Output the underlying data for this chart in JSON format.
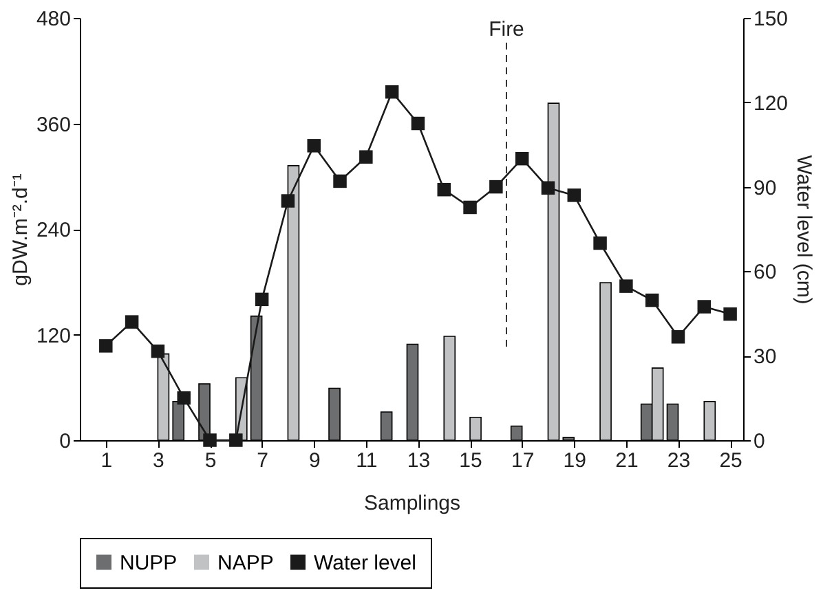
{
  "chart_data": {
    "type": "bar",
    "xlabel": "Samplings",
    "ylabel": "gDW.m⁻².d⁻¹",
    "y2label": "Water level (cm)",
    "x": [
      1,
      2,
      3,
      4,
      5,
      6,
      7,
      8,
      9,
      10,
      11,
      12,
      13,
      14,
      15,
      16,
      17,
      18,
      19,
      20,
      21,
      22,
      23,
      24,
      25
    ],
    "xlim": [
      0,
      25.5
    ],
    "xticks": [
      1,
      3,
      5,
      7,
      9,
      11,
      13,
      15,
      17,
      19,
      21,
      23,
      25
    ],
    "ylim": [
      0,
      480
    ],
    "yticks": [
      0,
      120,
      240,
      360,
      480
    ],
    "y2lim": [
      0,
      150
    ],
    "y2ticks": [
      0,
      30,
      60,
      90,
      120,
      150
    ],
    "series": [
      {
        "name": "NUPP",
        "color": "#6d6e70",
        "values": [
          null,
          null,
          null,
          44,
          64,
          null,
          141,
          null,
          null,
          59,
          null,
          32,
          109,
          null,
          null,
          null,
          16,
          null,
          3,
          null,
          null,
          41,
          41,
          null,
          null
        ]
      },
      {
        "name": "NAPP",
        "color": "#c0c2c4",
        "values": [
          null,
          null,
          98,
          null,
          null,
          71,
          null,
          312,
          null,
          null,
          null,
          null,
          null,
          118,
          26,
          null,
          null,
          383,
          null,
          179,
          null,
          82,
          null,
          44,
          null
        ]
      },
      {
        "name": "Water level",
        "type": "line",
        "axis": "y2",
        "color": "#1a1a1a",
        "marker": "square",
        "values": [
          33.5,
          42,
          31.6,
          15,
          0,
          0,
          50,
          85,
          104.6,
          92,
          100.6,
          123.7,
          112.5,
          89,
          82.7,
          90,
          100,
          89.6,
          87,
          70,
          54.7,
          49.7,
          36.7,
          47.4,
          44.8
        ]
      }
    ],
    "ref_lines": [
      {
        "axis": "x",
        "value": 16.4,
        "label": "Fire",
        "line_style": "dashed",
        "color": "#333333"
      }
    ],
    "grid": false,
    "legend": "bottom"
  }
}
